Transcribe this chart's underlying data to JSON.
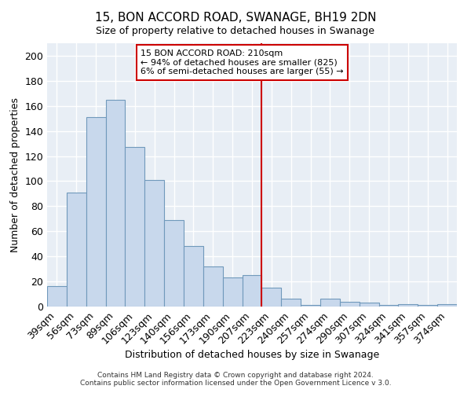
{
  "title": "15, BON ACCORD ROAD, SWANAGE, BH19 2DN",
  "subtitle": "Size of property relative to detached houses in Swanage",
  "xlabel": "Distribution of detached houses by size in Swanage",
  "ylabel": "Number of detached properties",
  "bar_labels": [
    "39sqm",
    "56sqm",
    "73sqm",
    "89sqm",
    "106sqm",
    "123sqm",
    "140sqm",
    "156sqm",
    "173sqm",
    "190sqm",
    "207sqm",
    "223sqm",
    "240sqm",
    "257sqm",
    "274sqm",
    "290sqm",
    "307sqm",
    "324sqm",
    "341sqm",
    "357sqm",
    "374sqm"
  ],
  "bar_values": [
    16,
    91,
    151,
    165,
    127,
    101,
    69,
    48,
    32,
    23,
    25,
    15,
    6,
    1,
    6,
    4,
    3,
    1,
    2,
    1,
    2
  ],
  "bar_color": "#c8d8ec",
  "bar_edge_color": "#7099bb",
  "vline_color": "#cc0000",
  "ylim": [
    0,
    210
  ],
  "yticks": [
    0,
    20,
    40,
    60,
    80,
    100,
    120,
    140,
    160,
    180,
    200
  ],
  "annotation_title": "15 BON ACCORD ROAD: 210sqm",
  "annotation_line1": "← 94% of detached houses are smaller (825)",
  "annotation_line2": "6% of semi-detached houses are larger (55) →",
  "annotation_box_color": "#ffffff",
  "annotation_box_edge": "#cc0000",
  "footer1": "Contains HM Land Registry data © Crown copyright and database right 2024.",
  "footer2": "Contains public sector information licensed under the Open Government Licence v 3.0.",
  "plot_bg_color": "#e8eef5",
  "fig_bg_color": "#ffffff",
  "grid_color": "#ffffff",
  "title_fontsize": 11,
  "subtitle_fontsize": 9,
  "vline_bar_index": 10
}
